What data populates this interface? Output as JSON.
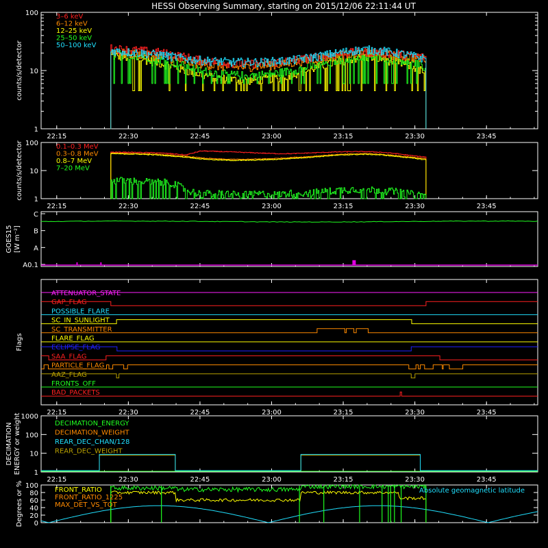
{
  "title": "HESSI Observing Summary, starting on 2015/12/06 22:11:44 UT",
  "time_ticks": [
    {
      "label": "22:15",
      "m": 3.27
    },
    {
      "label": "22:30",
      "m": 18.27
    },
    {
      "label": "22:45",
      "m": 33.27
    },
    {
      "label": "23:00",
      "m": 48.27
    },
    {
      "label": "23:15",
      "m": 63.27
    },
    {
      "label": "23:30",
      "m": 78.27
    },
    {
      "label": "23:45",
      "m": 93.27
    }
  ],
  "chart_data": [
    {
      "id": "p1",
      "type": "line",
      "ylabel": "counts/s/detector",
      "yscale": "log",
      "ylim": [
        1,
        100
      ],
      "yticks": [
        "1",
        "10",
        "100"
      ],
      "legend": [
        {
          "name": "3–6 keV",
          "color": "#ff2020"
        },
        {
          "name": "6–12 keV",
          "color": "#ff8a00"
        },
        {
          "name": "12–25 keV",
          "color": "#ffff00"
        },
        {
          "name": "25–50 keV",
          "color": "#20ff20"
        },
        {
          "name": "50–100 keV",
          "color": "#20e0ff"
        }
      ],
      "x_start": 14.6,
      "x_end": 80.6,
      "series": [
        {
          "color": "#ffff00",
          "values": [
            18,
            17,
            16,
            14,
            12,
            10,
            8.5,
            7.5,
            7,
            6.8,
            7,
            7.5,
            8.5,
            10,
            12,
            14,
            16,
            17,
            16,
            14,
            12,
            9
          ]
        },
        {
          "color": "#20ff20",
          "values": [
            20,
            19,
            18,
            16,
            14,
            12,
            10,
            9,
            8.5,
            8.2,
            8.5,
            9,
            10,
            11.5,
            13,
            15,
            17,
            18,
            17,
            16,
            14,
            11
          ]
        },
        {
          "color": "#ff8a00",
          "values": [
            21,
            20,
            19,
            18,
            16,
            14,
            13,
            12,
            11.5,
            11.5,
            12,
            12.5,
            13.5,
            15,
            16.5,
            18,
            19.5,
            20,
            19.5,
            18,
            17,
            16
          ]
        },
        {
          "color": "#ff2020",
          "values": [
            24,
            23,
            22,
            21,
            19,
            17,
            15,
            14,
            13.5,
            13,
            13.5,
            14,
            15,
            16,
            17.5,
            19,
            20.5,
            21,
            20.5,
            19.5,
            18,
            17
          ]
        },
        {
          "color": "#20e0ff",
          "values": [
            22,
            21,
            20,
            19,
            17.5,
            16,
            15,
            14.5,
            14,
            14,
            14,
            14.5,
            15,
            16.5,
            18,
            20,
            22,
            23,
            22,
            20,
            18,
            16
          ]
        }
      ]
    },
    {
      "id": "p2",
      "type": "line",
      "ylabel": "counts/s/detector",
      "yscale": "log",
      "ylim": [
        1,
        100
      ],
      "yticks": [
        "1",
        "10",
        "100"
      ],
      "legend": [
        {
          "name": "0.1–0.3 MeV",
          "color": "#ff2020"
        },
        {
          "name": "0.3–0.8 MeV",
          "color": "#ff8a00"
        },
        {
          "name": "0.8–7 MeV",
          "color": "#ffff00"
        },
        {
          "name": "7–20 MeV",
          "color": "#20ff20"
        }
      ],
      "x_start": 14.6,
      "x_end": 80.6,
      "series": [
        {
          "color": "#ff2020",
          "values": [
            45,
            45,
            44,
            43,
            40,
            36,
            50,
            48,
            46,
            44,
            42,
            40,
            40,
            42,
            44,
            46,
            47,
            47,
            45,
            40,
            34,
            30
          ]
        },
        {
          "color": "#ff8a00",
          "values": [
            42,
            41,
            40,
            38,
            35,
            32,
            28,
            26,
            25,
            25,
            26,
            27,
            29,
            31,
            34,
            37,
            39,
            40,
            38,
            34,
            30,
            26
          ]
        },
        {
          "color": "#ffff00",
          "values": [
            40,
            39,
            38,
            36,
            33,
            30,
            26,
            24,
            23,
            23,
            24,
            25,
            27,
            29,
            32,
            35,
            37,
            38,
            36,
            32,
            28,
            24
          ]
        },
        {
          "color": "#20ff20",
          "values": [
            4.5,
            4.5,
            4.2,
            4,
            3.8,
            2,
            1.5,
            1.6,
            1.5,
            1.4,
            1.5,
            1.4,
            1.6,
            1.6,
            1.8,
            2,
            2.2,
            2.2,
            2,
            1.8,
            1.5,
            1.3
          ]
        }
      ]
    },
    {
      "id": "p3",
      "type": "line",
      "ylabel": "GOES15",
      "ylabel2": "[W m⁻²]",
      "yticks": [
        "A0.1",
        "A",
        "B",
        "C"
      ],
      "series": [
        {
          "color": "#20ff20",
          "level": 0.82
        }
      ],
      "baseline_color": "#e000e0",
      "spikes": [
        {
          "m": 7.6,
          "h": 0.05
        },
        {
          "m": 12.6,
          "h": 0.05
        },
        {
          "m": 65.4,
          "h": 0.09
        }
      ]
    },
    {
      "id": "p4",
      "type": "table",
      "ylabel": "Flags",
      "flags": [
        {
          "name": "ATTENUATOR_STATE",
          "color": "#ff20ff"
        },
        {
          "name": "GAP_FLAG",
          "color": "#ff2020"
        },
        {
          "name": "POSSIBLE_FLARE",
          "color": "#20e0ff"
        },
        {
          "name": "SC_IN_SUNLIGHT",
          "color": "#ffff00"
        },
        {
          "name": "SC_TRANSMITTER",
          "color": "#ff8a00"
        },
        {
          "name": "FLARE_FLAG",
          "color": "#ffff00"
        },
        {
          "name": "ECLIPSE_FLAG",
          "color": "#2020ff"
        },
        {
          "name": "SAA_FLAG",
          "color": "#ff2020"
        },
        {
          "name": "PARTICLE_FLAG",
          "color": "#ff8a00"
        },
        {
          "name": "AAZ_FLAG",
          "color": "#b8a000"
        },
        {
          "name": "FRONTS_OFF",
          "color": "#20ff20"
        },
        {
          "name": "BAD_PACKETS",
          "color": "#ff2020"
        }
      ]
    },
    {
      "id": "p5",
      "type": "line",
      "ylabel": "DECIMATION",
      "ylabel2": "ENERGY or weight",
      "yscale": "log",
      "ylim": [
        1,
        1000
      ],
      "yticks": [
        "1",
        "10",
        "100",
        "1000"
      ],
      "legend": [
        {
          "name": "DECIMATION_ENERGY",
          "color": "#20ff20"
        },
        {
          "name": "DECIMATION_WEIGHT",
          "color": "#ff8a00"
        },
        {
          "name": "REAR_DEC_CHAN/128",
          "color": "#20e0ff"
        },
        {
          "name": "REAR_DEC_WEIGHT",
          "color": "#b8a000"
        }
      ],
      "steps": [
        {
          "start": 12.2,
          "end": 28.1,
          "value": 8
        },
        {
          "start": 54.4,
          "end": 79.4,
          "value": 8
        }
      ]
    },
    {
      "id": "p6",
      "type": "line",
      "ylabel": "Degrees or %",
      "ylim": [
        0,
        100
      ],
      "yticks": [
        "0",
        "20",
        "40",
        "60",
        "80",
        "100"
      ],
      "legend": [
        {
          "name": "FRONT_RATIO",
          "color": "#ffff00"
        },
        {
          "name": "FRONT_RATIO_1225",
          "color": "#ff8a00"
        },
        {
          "name": "MAX_DET_VS_TOT",
          "color": "#ff8a00"
        }
      ],
      "legend_right": {
        "name": "Absolute geomagnetic latitude",
        "color": "#20e0ff"
      }
    }
  ]
}
